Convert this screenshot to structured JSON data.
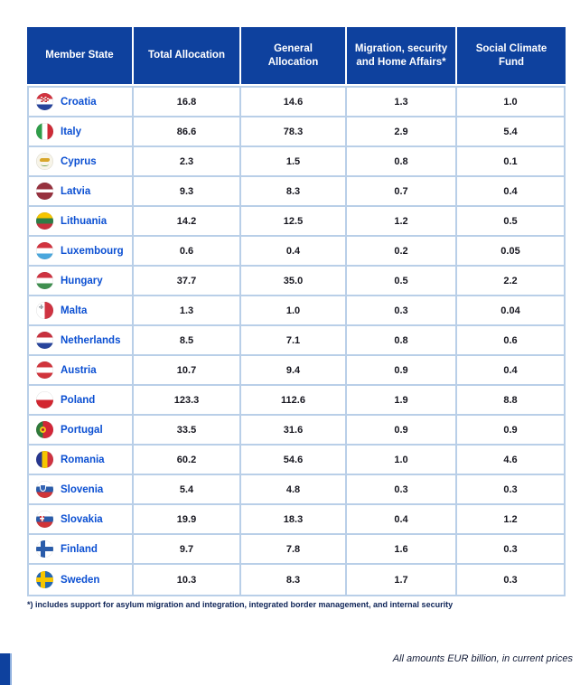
{
  "table": {
    "columns": [
      "Member State",
      "Total Allocation",
      "General Allocation",
      "Migration, security and Home Affairs*",
      "Social Climate Fund"
    ],
    "rows": [
      {
        "country": "Croatia",
        "flag": "croatia",
        "total": "16.8",
        "general": "14.6",
        "migration": "1.3",
        "scf": "1.0"
      },
      {
        "country": "Italy",
        "flag": "italy",
        "total": "86.6",
        "general": "78.3",
        "migration": "2.9",
        "scf": "5.4"
      },
      {
        "country": "Cyprus",
        "flag": "cyprus",
        "total": "2.3",
        "general": "1.5",
        "migration": "0.8",
        "scf": "0.1"
      },
      {
        "country": "Latvia",
        "flag": "latvia",
        "total": "9.3",
        "general": "8.3",
        "migration": "0.7",
        "scf": "0.4"
      },
      {
        "country": "Lithuania",
        "flag": "lithuania",
        "total": "14.2",
        "general": "12.5",
        "migration": "1.2",
        "scf": "0.5"
      },
      {
        "country": "Luxembourg",
        "flag": "luxembourg",
        "total": "0.6",
        "general": "0.4",
        "migration": "0.2",
        "scf": "0.05"
      },
      {
        "country": "Hungary",
        "flag": "hungary",
        "total": "37.7",
        "general": "35.0",
        "migration": "0.5",
        "scf": "2.2"
      },
      {
        "country": "Malta",
        "flag": "malta",
        "total": "1.3",
        "general": "1.0",
        "migration": "0.3",
        "scf": "0.04"
      },
      {
        "country": "Netherlands",
        "flag": "netherlands",
        "total": "8.5",
        "general": "7.1",
        "migration": "0.8",
        "scf": "0.6"
      },
      {
        "country": "Austria",
        "flag": "austria",
        "total": "10.7",
        "general": "9.4",
        "migration": "0.9",
        "scf": "0.4"
      },
      {
        "country": "Poland",
        "flag": "poland",
        "total": "123.3",
        "general": "112.6",
        "migration": "1.9",
        "scf": "8.8"
      },
      {
        "country": "Portugal",
        "flag": "portugal",
        "total": "33.5",
        "general": "31.6",
        "migration": "0.9",
        "scf": "0.9"
      },
      {
        "country": "Romania",
        "flag": "romania",
        "total": "60.2",
        "general": "54.6",
        "migration": "1.0",
        "scf": "4.6"
      },
      {
        "country": "Slovenia",
        "flag": "slovenia",
        "total": "5.4",
        "general": "4.8",
        "migration": "0.3",
        "scf": "0.3"
      },
      {
        "country": "Slovakia",
        "flag": "slovakia",
        "total": "19.9",
        "general": "18.3",
        "migration": "0.4",
        "scf": "1.2"
      },
      {
        "country": "Finland",
        "flag": "finland",
        "total": "9.7",
        "general": "7.8",
        "migration": "1.6",
        "scf": "0.3"
      },
      {
        "country": "Sweden",
        "flag": "sweden",
        "total": "10.3",
        "general": "8.3",
        "migration": "1.7",
        "scf": "0.3"
      }
    ]
  },
  "footnote": "*) includes support for asylum migration and integration, integrated border management, and internal security",
  "amounts_note": "All amounts EUR billion, in current prices",
  "colors": {
    "header_blue": "#0e419e",
    "country_text_blue": "#0b4fd2",
    "grid_border_blue": "#b9cfe8",
    "value_text": "#16161f"
  },
  "chart_data": {
    "type": "table",
    "title": "",
    "columns": [
      "Member State",
      "Total Allocation",
      "General Allocation",
      "Migration, security and Home Affairs*",
      "Social Climate Fund"
    ],
    "rows": [
      [
        "Croatia",
        16.8,
        14.6,
        1.3,
        1.0
      ],
      [
        "Italy",
        86.6,
        78.3,
        2.9,
        5.4
      ],
      [
        "Cyprus",
        2.3,
        1.5,
        0.8,
        0.1
      ],
      [
        "Latvia",
        9.3,
        8.3,
        0.7,
        0.4
      ],
      [
        "Lithuania",
        14.2,
        12.5,
        1.2,
        0.5
      ],
      [
        "Luxembourg",
        0.6,
        0.4,
        0.2,
        0.05
      ],
      [
        "Hungary",
        37.7,
        35.0,
        0.5,
        2.2
      ],
      [
        "Malta",
        1.3,
        1.0,
        0.3,
        0.04
      ],
      [
        "Netherlands",
        8.5,
        7.1,
        0.8,
        0.6
      ],
      [
        "Austria",
        10.7,
        9.4,
        0.9,
        0.4
      ],
      [
        "Poland",
        123.3,
        112.6,
        1.9,
        8.8
      ],
      [
        "Portugal",
        33.5,
        31.6,
        0.9,
        0.9
      ],
      [
        "Romania",
        60.2,
        54.6,
        1.0,
        4.6
      ],
      [
        "Slovenia",
        5.4,
        4.8,
        0.3,
        0.3
      ],
      [
        "Slovakia",
        19.9,
        18.3,
        0.4,
        1.2
      ],
      [
        "Finland",
        9.7,
        7.8,
        1.6,
        0.3
      ],
      [
        "Sweden",
        10.3,
        8.3,
        1.7,
        0.3
      ]
    ],
    "units": "EUR billion, current prices"
  }
}
